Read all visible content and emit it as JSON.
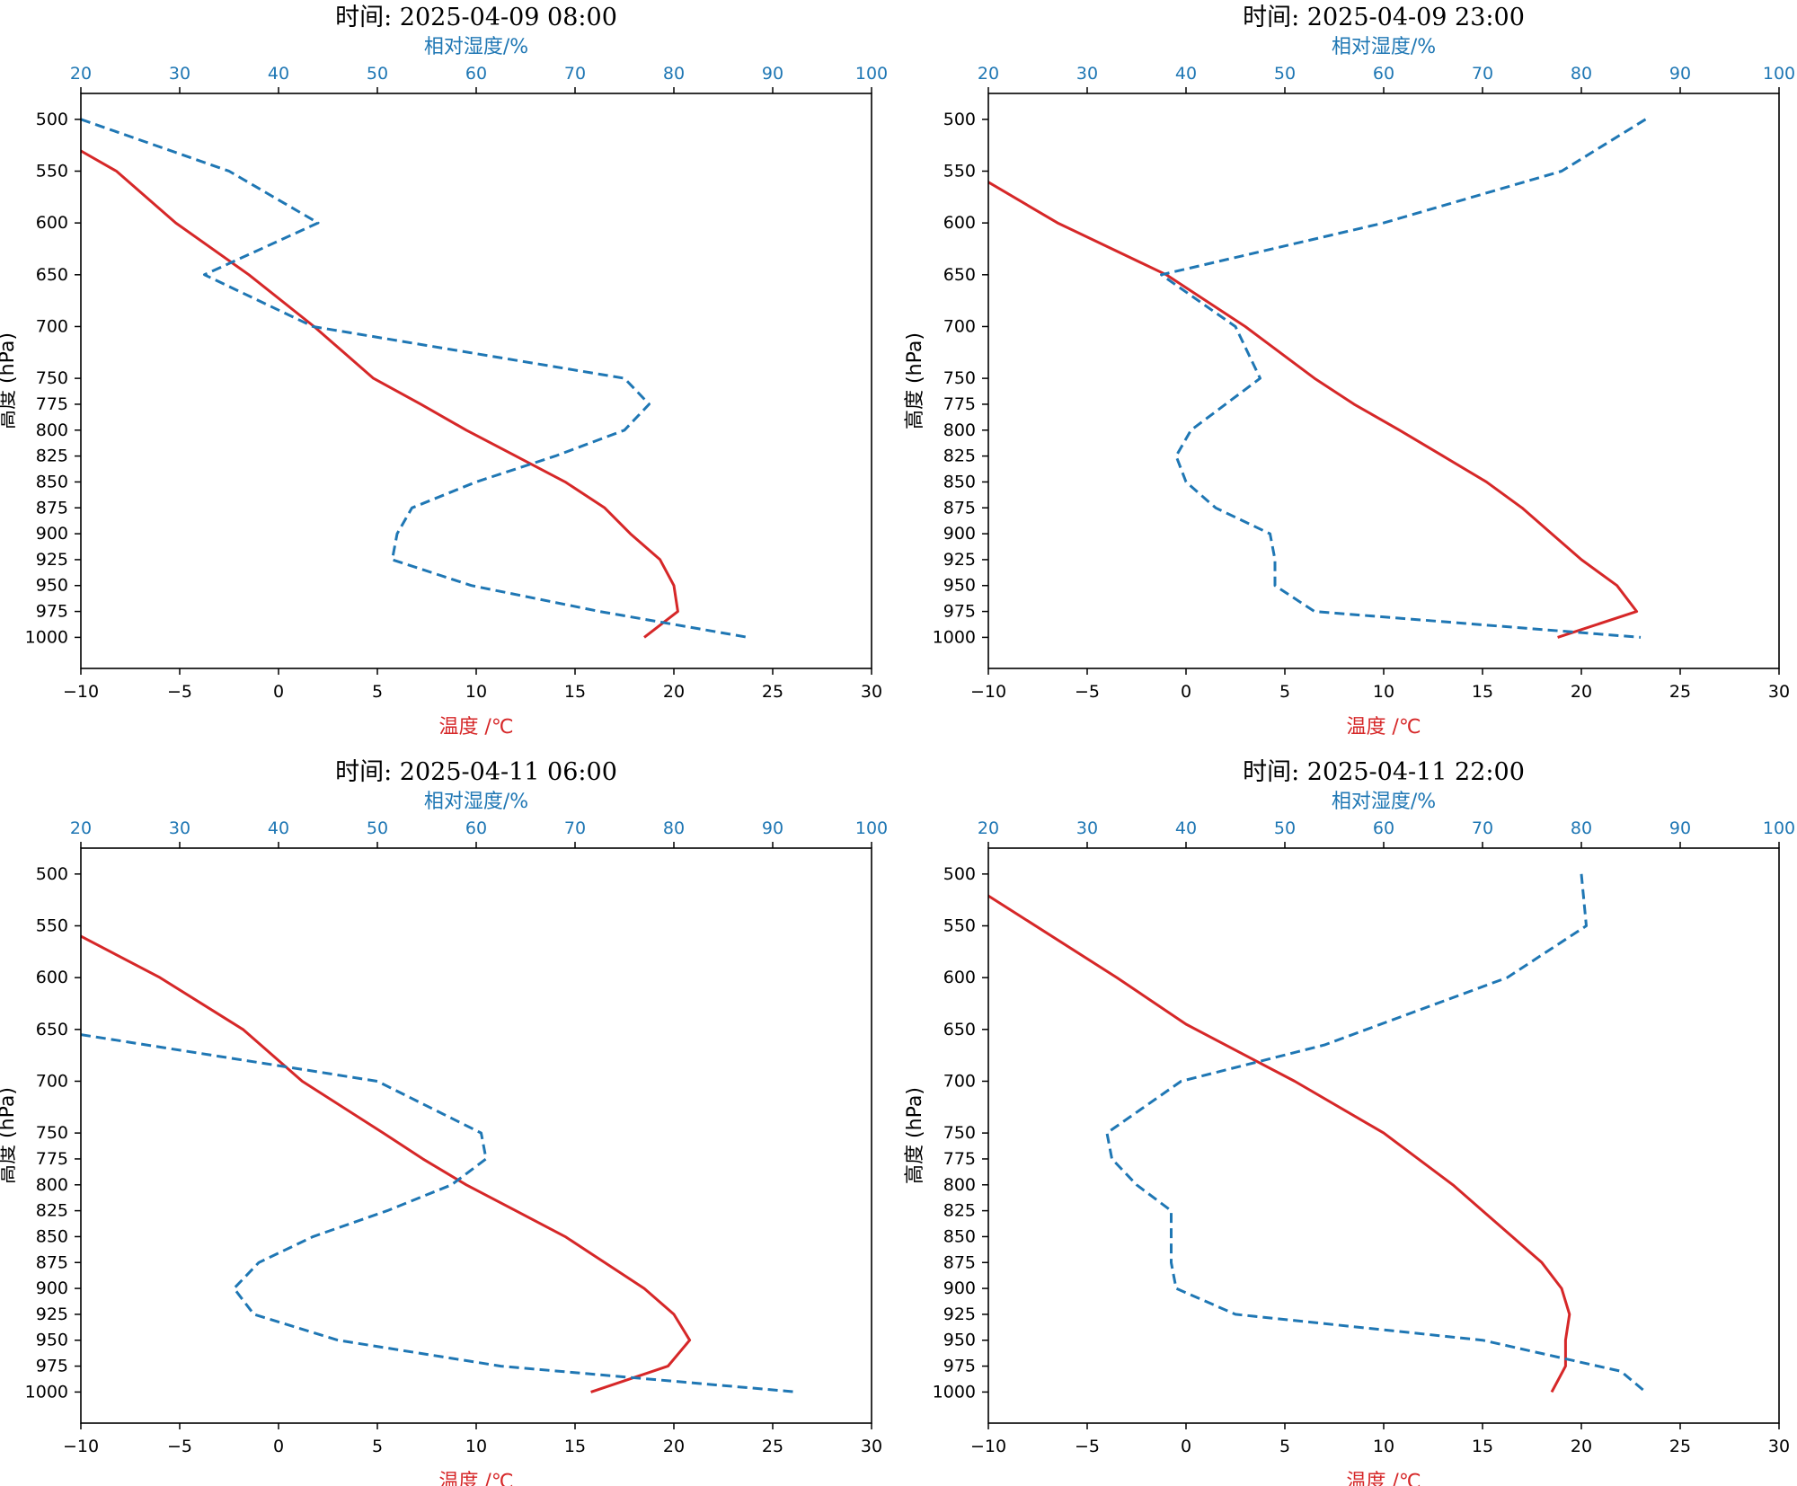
{
  "chart_data": [
    {
      "type": "line",
      "title": "时间: 2025-04-09 08:00",
      "xlabel": "温度 /℃",
      "x2label": "相对湿度/%",
      "ylabel": "高度 (hPa)",
      "xlim": [
        -10,
        30
      ],
      "x2lim": [
        20,
        100
      ],
      "ylim": [
        1030,
        475
      ],
      "xticks": [
        -10,
        -5,
        0,
        5,
        10,
        15,
        20,
        25,
        30
      ],
      "x2ticks": [
        20,
        30,
        40,
        50,
        60,
        70,
        80,
        90,
        100
      ],
      "yticks": [
        500,
        550,
        600,
        650,
        700,
        750,
        775,
        800,
        825,
        850,
        875,
        900,
        925,
        950,
        975,
        1000
      ],
      "series": [
        {
          "axis": "temperature",
          "color": "#d62728",
          "style": "solid",
          "points": [
            [
              -10.5,
              525
            ],
            [
              -8.2,
              550
            ],
            [
              -5.2,
              600
            ],
            [
              -1.5,
              650
            ],
            [
              1.8,
              700
            ],
            [
              4.8,
              750
            ],
            [
              7.2,
              775
            ],
            [
              9.5,
              800
            ],
            [
              12,
              825
            ],
            [
              14.5,
              850
            ],
            [
              16.5,
              875
            ],
            [
              17.8,
              900
            ],
            [
              19.3,
              925
            ],
            [
              20,
              950
            ],
            [
              20.2,
              975
            ],
            [
              18.5,
              1000
            ]
          ]
        },
        {
          "axis": "rh",
          "color": "#1f77b4",
          "style": "dashed",
          "points": [
            [
              20,
              500
            ],
            [
              35,
              550
            ],
            [
              44,
              600
            ],
            [
              32.5,
              650
            ],
            [
              43.5,
              700
            ],
            [
              75,
              750
            ],
            [
              77.5,
              775
            ],
            [
              75,
              800
            ],
            [
              68,
              825
            ],
            [
              60,
              850
            ],
            [
              53.5,
              875
            ],
            [
              52,
              900
            ],
            [
              51.5,
              925
            ],
            [
              59.5,
              950
            ],
            [
              72.5,
              975
            ],
            [
              87.5,
              1000
            ]
          ]
        }
      ]
    },
    {
      "type": "line",
      "title": "时间: 2025-04-09 23:00",
      "xlabel": "温度 /℃",
      "x2label": "相对湿度/%",
      "ylabel": "高度 (hPa)",
      "xlim": [
        -10,
        30
      ],
      "x2lim": [
        20,
        100
      ],
      "ylim": [
        1030,
        475
      ],
      "xticks": [
        -10,
        -5,
        0,
        5,
        10,
        15,
        20,
        25,
        30
      ],
      "x2ticks": [
        20,
        30,
        40,
        50,
        60,
        70,
        80,
        90,
        100
      ],
      "yticks": [
        500,
        550,
        600,
        650,
        700,
        750,
        775,
        800,
        825,
        850,
        875,
        900,
        925,
        950,
        975,
        1000
      ],
      "series": [
        {
          "axis": "temperature",
          "color": "#d62728",
          "style": "solid",
          "points": [
            [
              -10.5,
              555
            ],
            [
              -6.5,
              600
            ],
            [
              -1,
              650
            ],
            [
              3,
              700
            ],
            [
              6.5,
              750
            ],
            [
              8.5,
              775
            ],
            [
              10.8,
              800
            ],
            [
              13,
              825
            ],
            [
              15.2,
              850
            ],
            [
              17,
              875
            ],
            [
              18.5,
              900
            ],
            [
              20,
              925
            ],
            [
              21.8,
              950
            ],
            [
              22.8,
              975
            ],
            [
              18.8,
              1000
            ]
          ]
        },
        {
          "axis": "rh",
          "color": "#1f77b4",
          "style": "dashed",
          "points": [
            [
              86.5,
              500
            ],
            [
              78,
              550
            ],
            [
              60,
              600
            ],
            [
              37.5,
              650
            ],
            [
              45,
              700
            ],
            [
              47.5,
              750
            ],
            [
              40.5,
              800
            ],
            [
              39,
              825
            ],
            [
              40,
              850
            ],
            [
              43,
              875
            ],
            [
              48.5,
              900
            ],
            [
              49,
              925
            ],
            [
              49,
              950
            ],
            [
              53,
              975
            ],
            [
              86,
              1000
            ]
          ]
        }
      ]
    },
    {
      "type": "line",
      "title": "时间: 2025-04-11 06:00",
      "xlabel": "温度 /℃",
      "x2label": "相对湿度/%",
      "ylabel": "高度 (hPa)",
      "xlim": [
        -10,
        30
      ],
      "x2lim": [
        20,
        100
      ],
      "ylim": [
        1030,
        475
      ],
      "xticks": [
        -10,
        -5,
        0,
        5,
        10,
        15,
        20,
        25,
        30
      ],
      "x2ticks": [
        20,
        30,
        40,
        50,
        60,
        70,
        80,
        90,
        100
      ],
      "yticks": [
        500,
        550,
        600,
        650,
        700,
        750,
        775,
        800,
        825,
        850,
        875,
        900,
        925,
        950,
        975,
        1000
      ],
      "series": [
        {
          "axis": "temperature",
          "color": "#d62728",
          "style": "solid",
          "points": [
            [
              -10.5,
              555
            ],
            [
              -6,
              600
            ],
            [
              -1.8,
              650
            ],
            [
              1.2,
              700
            ],
            [
              5.3,
              750
            ],
            [
              7.3,
              775
            ],
            [
              9.5,
              800
            ],
            [
              12,
              825
            ],
            [
              14.5,
              850
            ],
            [
              16.5,
              875
            ],
            [
              18.5,
              900
            ],
            [
              20,
              925
            ],
            [
              20.8,
              950
            ],
            [
              19.7,
              975
            ],
            [
              15.8,
              1000
            ]
          ]
        },
        {
          "axis": "rh",
          "color": "#1f77b4",
          "style": "dashed",
          "points": [
            [
              20,
              655
            ],
            [
              42,
              688
            ],
            [
              50,
              700
            ],
            [
              60.5,
              750
            ],
            [
              61,
              775
            ],
            [
              57.5,
              800
            ],
            [
              51,
              825
            ],
            [
              43.5,
              850
            ],
            [
              38,
              875
            ],
            [
              35.5,
              900
            ],
            [
              37.5,
              925
            ],
            [
              46,
              950
            ],
            [
              62.5,
              975
            ],
            [
              92.5,
              1000
            ]
          ]
        }
      ]
    },
    {
      "type": "line",
      "title": "时间: 2025-04-11 22:00",
      "xlabel": "温度 /℃",
      "x2label": "相对湿度/%",
      "ylabel": "高度 (hPa)",
      "xlim": [
        -10,
        30
      ],
      "x2lim": [
        20,
        100
      ],
      "ylim": [
        1030,
        475
      ],
      "xticks": [
        -10,
        -5,
        0,
        5,
        10,
        15,
        20,
        25,
        30
      ],
      "x2ticks": [
        20,
        30,
        40,
        50,
        60,
        70,
        80,
        90,
        100
      ],
      "yticks": [
        500,
        550,
        600,
        650,
        700,
        750,
        775,
        800,
        825,
        850,
        875,
        900,
        925,
        950,
        975,
        1000
      ],
      "series": [
        {
          "axis": "temperature",
          "color": "#d62728",
          "style": "solid",
          "points": [
            [
              -10.5,
              515
            ],
            [
              -3.5,
              600
            ],
            [
              0,
              645
            ],
            [
              3.5,
              680
            ],
            [
              5.5,
              700
            ],
            [
              10,
              750
            ],
            [
              13.5,
              800
            ],
            [
              16.5,
              850
            ],
            [
              18,
              875
            ],
            [
              19,
              900
            ],
            [
              19.4,
              925
            ],
            [
              19.2,
              950
            ],
            [
              19.2,
              975
            ],
            [
              18.5,
              1000
            ]
          ]
        },
        {
          "axis": "rh",
          "color": "#1f77b4",
          "style": "dashed",
          "points": [
            [
              80,
              500
            ],
            [
              80.5,
              550
            ],
            [
              72.5,
              600
            ],
            [
              54,
              665
            ],
            [
              39.5,
              700
            ],
            [
              32,
              750
            ],
            [
              32.5,
              775
            ],
            [
              35,
              800
            ],
            [
              38.5,
              825
            ],
            [
              38.5,
              850
            ],
            [
              38.5,
              875
            ],
            [
              39,
              900
            ],
            [
              45,
              925
            ],
            [
              70,
              950
            ],
            [
              84,
              980
            ],
            [
              86.5,
              1000
            ]
          ]
        }
      ]
    }
  ]
}
